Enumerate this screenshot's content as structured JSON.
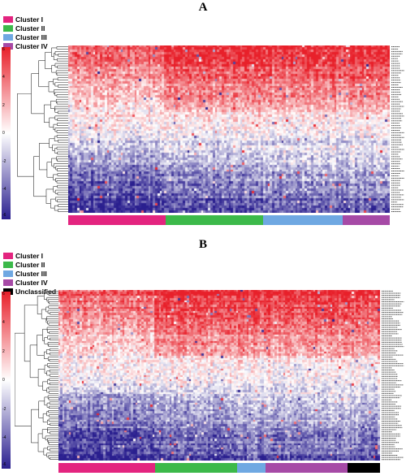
{
  "panels": [
    {
      "id": "A",
      "label": "A",
      "legend": [
        {
          "label": "Cluster I",
          "color": "#e3247f"
        },
        {
          "label": "Cluster II",
          "color": "#3cb94a"
        },
        {
          "label": "Cluster III",
          "color": "#6fa8e2"
        },
        {
          "label": "Cluster IV",
          "color": "#a64aa6"
        }
      ],
      "colorbar_ticks": [
        "6",
        "4",
        "2",
        "0",
        "-2",
        "-4",
        "-6"
      ],
      "annotation": [
        {
          "cluster": "Cluster I",
          "fraction": 0.303
        },
        {
          "cluster": "Cluster II",
          "fraction": 0.303
        },
        {
          "cluster": "Cluster III",
          "fraction": 0.248
        },
        {
          "cluster": "Cluster IV",
          "fraction": 0.146
        }
      ]
    },
    {
      "id": "B",
      "label": "B",
      "legend": [
        {
          "label": "Cluster I",
          "color": "#e3247f"
        },
        {
          "label": "Cluster II",
          "color": "#3cb94a"
        },
        {
          "label": "Cluster III",
          "color": "#6fa8e2"
        },
        {
          "label": "Cluster IV",
          "color": "#a64aa6"
        },
        {
          "label": "Unclassified",
          "color": "#000000"
        }
      ],
      "colorbar_ticks": [
        "6",
        "4",
        "2",
        "0",
        "-2",
        "-4",
        "-6"
      ],
      "annotation": [
        {
          "cluster": "Cluster I",
          "fraction": 0.301
        },
        {
          "cluster": "Cluster II",
          "fraction": 0.255
        },
        {
          "cluster": "Cluster III",
          "fraction": 0.089
        },
        {
          "cluster": "Cluster IV",
          "fraction": 0.255
        },
        {
          "cluster": "Unclassified",
          "fraction": 0.1
        }
      ]
    }
  ],
  "chart_data": [
    {
      "type": "heatmap",
      "panel": "A",
      "color_scale": {
        "min": -6,
        "max": 6,
        "low_color": "#2a1f8f",
        "mid_color": "#ffffff",
        "high_color": "#e8202a"
      },
      "rows": 70,
      "columns": 140,
      "column_clusters": [
        "Cluster I",
        "Cluster II",
        "Cluster III",
        "Cluster IV"
      ],
      "row_dendrogram": true,
      "pattern": "upper rows high (red), lower rows low (blue)"
    },
    {
      "type": "heatmap",
      "panel": "B",
      "color_scale": {
        "min": -6,
        "max": 6,
        "low_color": "#2a1f8f",
        "mid_color": "#ffffff",
        "high_color": "#e8202a"
      },
      "rows": 80,
      "columns": 150,
      "column_clusters": [
        "Cluster I",
        "Cluster II",
        "Cluster III",
        "Cluster IV",
        "Unclassified"
      ],
      "row_dendrogram": true,
      "pattern": "upper rows high (red), lower rows low (blue)"
    }
  ]
}
